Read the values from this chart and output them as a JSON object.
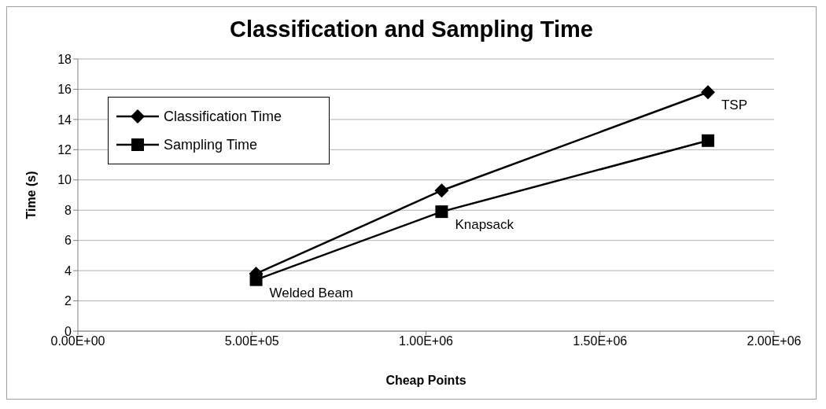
{
  "chart_data": {
    "type": "line",
    "title": "Classification and Sampling Time",
    "xlabel": "Cheap Points",
    "ylabel": "Time (s)",
    "x": [
      512000,
      1045000,
      1810000
    ],
    "series": [
      {
        "name": "Classification Time",
        "color": "#000000",
        "marker": "diamond",
        "values": [
          3.8,
          9.3,
          15.8
        ]
      },
      {
        "name": "Sampling Time",
        "color": "#000000",
        "marker": "square",
        "values": [
          3.4,
          7.9,
          12.6
        ]
      }
    ],
    "xlim": [
      0,
      2000000
    ],
    "xticks": [
      {
        "value": 0,
        "label": "0.00E+00"
      },
      {
        "value": 500000,
        "label": "5.00E+05"
      },
      {
        "value": 1000000,
        "label": "1.00E+06"
      },
      {
        "value": 1500000,
        "label": "1.50E+06"
      },
      {
        "value": 2000000,
        "label": "2.00E+06"
      }
    ],
    "ylim": [
      0,
      18
    ],
    "yticks": [
      0,
      2,
      4,
      6,
      8,
      10,
      12,
      14,
      16,
      18
    ],
    "grid": "y",
    "legend": "top left",
    "line_style": "solid",
    "annotations": [
      {
        "text": "Welded Beam",
        "x": 512000,
        "y": 3.4
      },
      {
        "text": "Knapsack",
        "x": 1045000,
        "y": 7.9
      },
      {
        "text": "TSP",
        "x": 1810000,
        "y": 15.8
      }
    ]
  }
}
